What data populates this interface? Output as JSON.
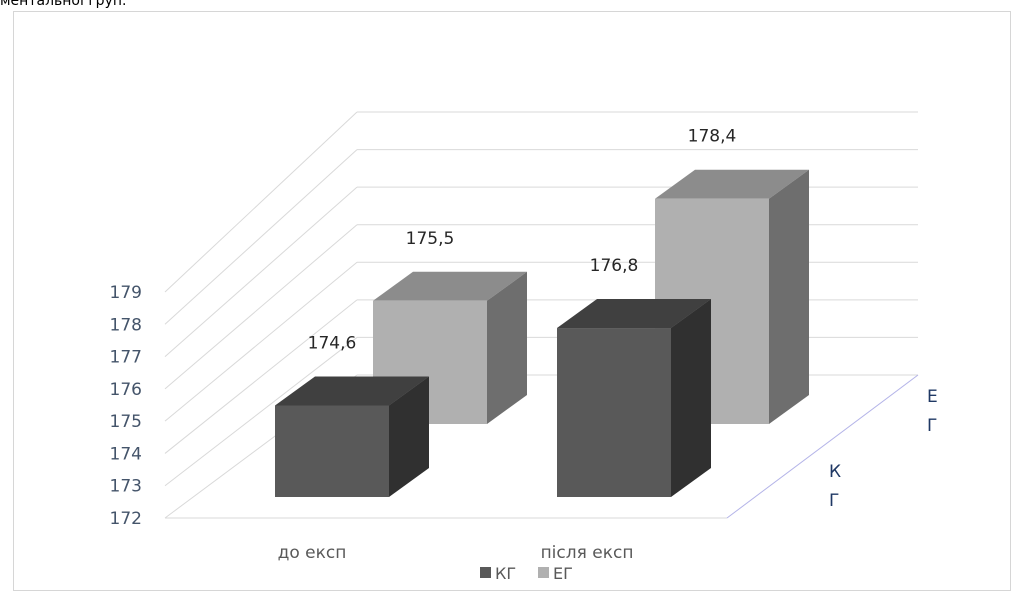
{
  "caption": "ментальної груп.",
  "chart_data": {
    "type": "bar",
    "subtype": "3d-column",
    "categories": [
      "до експ",
      "після експ"
    ],
    "series": [
      {
        "name": "КГ",
        "values": [
          174.6,
          176.8
        ],
        "value_labels": [
          "174,6",
          "176,8"
        ]
      },
      {
        "name": "ЕГ",
        "values": [
          175.5,
          178.4
        ],
        "value_labels": [
          "175,5",
          "178,4"
        ]
      }
    ],
    "ylim": [
      172,
      179
    ],
    "yticks": [
      "172",
      "173",
      "174",
      "175",
      "176",
      "177",
      "178",
      "179"
    ],
    "depth_axis_labels": [
      "К Г",
      "Е Г"
    ],
    "grid": true,
    "legend": "bottom",
    "colors": {
      "КГ": {
        "front": "#595959",
        "top": "#404040",
        "side": "#303030"
      },
      "ЕГ": {
        "front": "#b0b0b0",
        "top": "#8c8c8c",
        "side": "#6e6e6e"
      }
    }
  }
}
